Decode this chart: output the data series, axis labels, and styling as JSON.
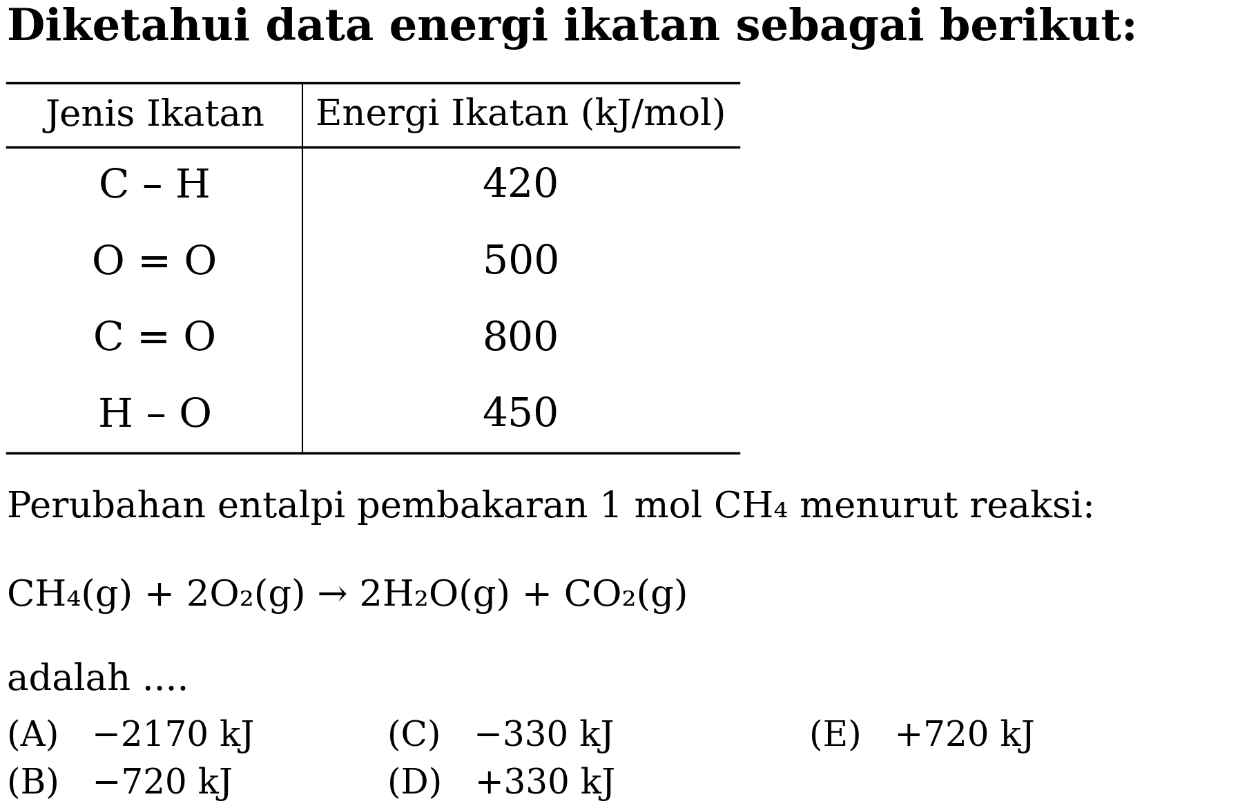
{
  "title": "Diketahui data energi ikatan sebagai berikut:",
  "table_headers": [
    "Jenis Ikatan",
    "Energi Ikatan (kJ/mol)"
  ],
  "table_rows": [
    [
      "C – H",
      "420"
    ],
    [
      "O = O",
      "500"
    ],
    [
      "C = O",
      "800"
    ],
    [
      "H – O",
      "450"
    ]
  ],
  "para1": "Perubahan entalpi pembakaran 1 mol CH₄ menurut reaksi:",
  "reaction": "CH₄(g) + 2O₂(g) → 2H₂O(g) + CO₂(g)",
  "conclusion": "adalah ....",
  "options_row1": [
    "(A)   −2170 kJ",
    "(C)   −330 kJ",
    "(E)   +720 kJ"
  ],
  "options_row2": [
    "(B)   −720 kJ",
    "(D)   +330 kJ"
  ],
  "bg_color": "#ffffff",
  "text_color": "#000000",
  "font_size_title": 46,
  "font_size_header": 38,
  "font_size_data": 42,
  "font_size_body": 38,
  "font_size_options": 36
}
